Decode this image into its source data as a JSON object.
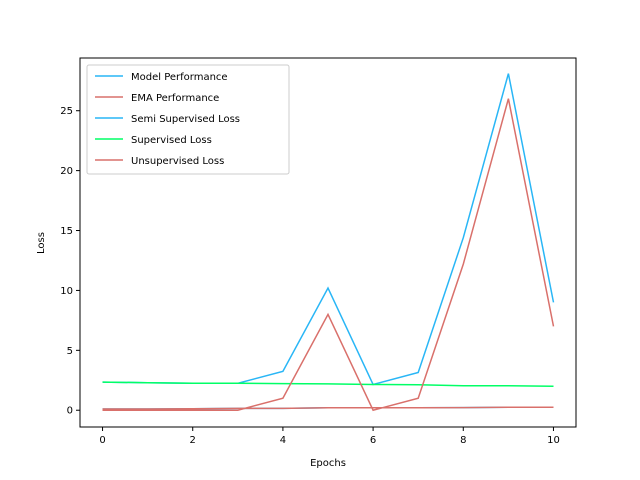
{
  "chart_data": {
    "type": "line",
    "title": "",
    "xlabel": "Epochs",
    "ylabel": "Loss",
    "xlim": [
      -0.5,
      10.5
    ],
    "ylim": [
      -1.4,
      29.4
    ],
    "xticks": [
      0,
      2,
      4,
      6,
      8,
      10
    ],
    "yticks": [
      0,
      5,
      10,
      15,
      20,
      25
    ],
    "grid": false,
    "legend_position": "top-left",
    "x": [
      0,
      1,
      2,
      3,
      4,
      5,
      6,
      7,
      8,
      9,
      10
    ],
    "series": [
      {
        "name": "Model Performance",
        "color": "#ffffff",
        "legend_color": "#29b6f6",
        "values": [
          0,
          0,
          0,
          0,
          0,
          0,
          0,
          0,
          0,
          0,
          0
        ]
      },
      {
        "name": "EMA Performance",
        "color": "#ffffff",
        "legend_color": "#d9706b",
        "values": [
          0,
          0,
          0,
          0,
          0,
          0,
          0,
          0,
          0,
          0,
          0
        ]
      },
      {
        "name": "Semi Supervised Loss",
        "color": "#29b6f6",
        "values": [
          2.35,
          2.3,
          2.25,
          2.25,
          3.25,
          10.2,
          2.15,
          3.15,
          14.4,
          28.1,
          9.0
        ]
      },
      {
        "name": "Supervised Loss",
        "color": "#00ff66",
        "values": [
          2.35,
          2.3,
          2.25,
          2.25,
          2.22,
          2.2,
          2.15,
          2.12,
          2.05,
          2.05,
          2.0
        ]
      },
      {
        "name": "Unsupervised Loss",
        "color": "#d9706b",
        "values": [
          0.0,
          0.0,
          0.0,
          0.0,
          1.0,
          8.0,
          0.0,
          1.0,
          12.2,
          26.0,
          7.0
        ]
      }
    ],
    "baseline_series": [
      {
        "color": "#29b6f6",
        "values": [
          0.1,
          0.1,
          0.12,
          0.15,
          0.15,
          0.2,
          0.2,
          0.2,
          0.22,
          0.25,
          0.25
        ]
      },
      {
        "color": "#d9706b",
        "values": [
          0.1,
          0.1,
          0.12,
          0.15,
          0.15,
          0.2,
          0.2,
          0.2,
          0.22,
          0.25,
          0.25
        ]
      }
    ]
  }
}
